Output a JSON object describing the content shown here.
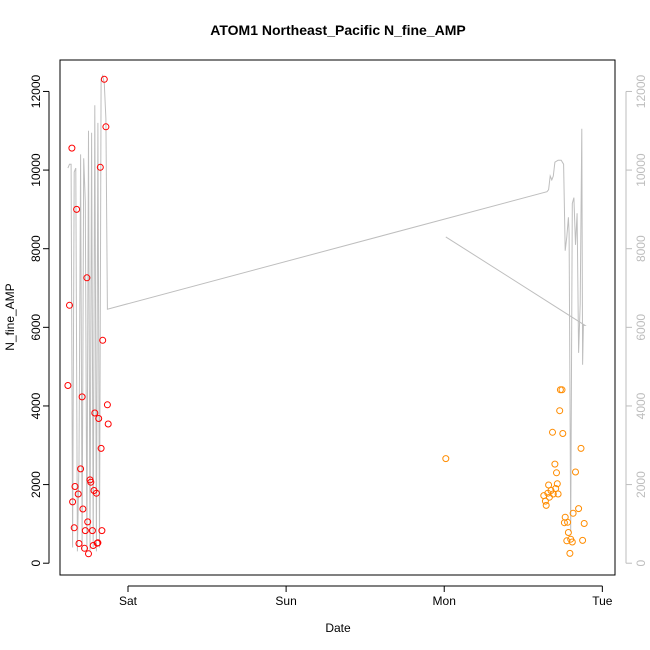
{
  "chart_data": {
    "type": "scatter",
    "title": "ATOM1 Northeast_Pacific N_fine_AMP",
    "xlabel": "Date",
    "ylabel": "N_fine_AMP",
    "x_ticks": [
      "Sat",
      "Sun",
      "Mon",
      "Tue"
    ],
    "x_tick_days": [
      1,
      2,
      3,
      4
    ],
    "xlim_days": [
      0.57,
      4.08
    ],
    "ylim": [
      -300,
      12800
    ],
    "y_ticks": [
      0,
      2000,
      4000,
      6000,
      8000,
      10000,
      12000
    ],
    "y2_ticks": [
      0,
      2000,
      4000,
      6000,
      8000,
      10000,
      12000
    ],
    "colors": {
      "series1": "#ff0000",
      "series2": "#ff8c00",
      "line": "#bebebe",
      "right_axis": "#bdbdbd"
    },
    "series": [
      {
        "color": "#ff0000",
        "points": [
          [
            0.62,
            4520
          ],
          [
            0.63,
            6560
          ],
          [
            0.645,
            10560
          ],
          [
            0.65,
            1560
          ],
          [
            0.66,
            900
          ],
          [
            0.665,
            1950
          ],
          [
            0.675,
            9000
          ],
          [
            0.685,
            1760
          ],
          [
            0.69,
            500
          ],
          [
            0.7,
            2400
          ],
          [
            0.71,
            4230
          ],
          [
            0.715,
            1380
          ],
          [
            0.725,
            380
          ],
          [
            0.73,
            830
          ],
          [
            0.74,
            7260
          ],
          [
            0.745,
            1050
          ],
          [
            0.75,
            240
          ],
          [
            0.76,
            2120
          ],
          [
            0.765,
            2060
          ],
          [
            0.775,
            830
          ],
          [
            0.78,
            450
          ],
          [
            0.785,
            1850
          ],
          [
            0.79,
            3820
          ],
          [
            0.8,
            1780
          ],
          [
            0.805,
            510
          ],
          [
            0.81,
            520
          ],
          [
            0.815,
            3680
          ],
          [
            0.825,
            10070
          ],
          [
            0.83,
            2920
          ],
          [
            0.835,
            830
          ],
          [
            0.84,
            5670
          ],
          [
            0.85,
            12310
          ],
          [
            0.86,
            11100
          ],
          [
            0.87,
            4030
          ],
          [
            0.875,
            3540
          ]
        ]
      },
      {
        "color": "#ff8c00",
        "points": [
          [
            3.01,
            2660
          ],
          [
            3.63,
            1720
          ],
          [
            3.64,
            1580
          ],
          [
            3.645,
            1470
          ],
          [
            3.655,
            1780
          ],
          [
            3.66,
            1990
          ],
          [
            3.665,
            1680
          ],
          [
            3.675,
            1850
          ],
          [
            3.685,
            3330
          ],
          [
            3.69,
            1760
          ],
          [
            3.7,
            2520
          ],
          [
            3.705,
            1900
          ],
          [
            3.71,
            2300
          ],
          [
            3.715,
            2020
          ],
          [
            3.72,
            1760
          ],
          [
            3.73,
            3880
          ],
          [
            3.735,
            4410
          ],
          [
            3.745,
            4410
          ],
          [
            3.75,
            3300
          ],
          [
            3.76,
            1030
          ],
          [
            3.765,
            1170
          ],
          [
            3.775,
            570
          ],
          [
            3.78,
            1040
          ],
          [
            3.785,
            780
          ],
          [
            3.795,
            250
          ],
          [
            3.8,
            610
          ],
          [
            3.81,
            540
          ],
          [
            3.815,
            1270
          ],
          [
            3.83,
            2320
          ],
          [
            3.85,
            1390
          ],
          [
            3.865,
            2920
          ],
          [
            3.875,
            580
          ],
          [
            3.885,
            1010
          ]
        ]
      }
    ],
    "line_series": [
      {
        "color": "#bebebe",
        "points": [
          [
            0.62,
            10050
          ],
          [
            0.63,
            10150
          ],
          [
            0.64,
            10150
          ],
          [
            0.65,
            400
          ],
          [
            0.66,
            9950
          ],
          [
            0.67,
            10050
          ],
          [
            0.68,
            300
          ],
          [
            0.69,
            2600
          ],
          [
            0.7,
            10400
          ],
          [
            0.71,
            350
          ],
          [
            0.72,
            10300
          ],
          [
            0.73,
            9200
          ],
          [
            0.74,
            300
          ],
          [
            0.75,
            11000
          ],
          [
            0.76,
            300
          ],
          [
            0.77,
            10950
          ],
          [
            0.78,
            400
          ],
          [
            0.79,
            11650
          ],
          [
            0.8,
            300
          ],
          [
            0.81,
            11200
          ],
          [
            0.82,
            400
          ],
          [
            0.83,
            12300
          ],
          [
            0.84,
            12400
          ],
          [
            0.85,
            12200
          ],
          [
            0.86,
            11300
          ],
          [
            0.87,
            6460
          ],
          [
            3.65,
            9450
          ],
          [
            3.66,
            9500
          ],
          [
            3.67,
            9850
          ],
          [
            3.68,
            9750
          ],
          [
            3.69,
            9850
          ],
          [
            3.7,
            10200
          ],
          [
            3.72,
            10250
          ],
          [
            3.74,
            10250
          ],
          [
            3.755,
            10150
          ],
          [
            3.765,
            7950
          ],
          [
            3.775,
            8300
          ],
          [
            3.785,
            8800
          ],
          [
            3.79,
            8400
          ],
          [
            3.8,
            800
          ],
          [
            3.81,
            9150
          ],
          [
            3.82,
            9300
          ],
          [
            3.83,
            8100
          ],
          [
            3.84,
            8900
          ],
          [
            3.85,
            5350
          ],
          [
            3.86,
            6600
          ],
          [
            3.87,
            11050
          ],
          [
            3.875,
            5050
          ],
          [
            3.88,
            6050
          ],
          [
            3.89,
            6050
          ],
          [
            3.01,
            8300
          ]
        ]
      }
    ]
  }
}
